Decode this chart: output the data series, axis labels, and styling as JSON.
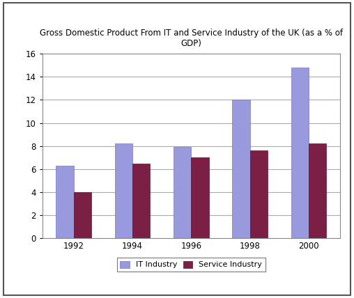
{
  "title": "Gross Domestic Product From IT and Service Industry of the UK (as a % of\nGDP)",
  "categories": [
    "1992",
    "1994",
    "1996",
    "1998",
    "2000"
  ],
  "it_values": [
    6.3,
    8.2,
    7.9,
    12.0,
    14.8
  ],
  "service_values": [
    4.0,
    6.5,
    7.0,
    7.6,
    8.2
  ],
  "it_color": "#9999dd",
  "service_color": "#7b1f45",
  "ylim": [
    0,
    16
  ],
  "yticks": [
    0,
    2,
    4,
    6,
    8,
    10,
    12,
    14,
    16
  ],
  "legend_labels": [
    "IT Industry",
    "Service Industry"
  ],
  "bar_width": 0.3,
  "title_fontsize": 8.5,
  "tick_fontsize": 8.5,
  "legend_fontsize": 8,
  "background_color": "#ffffff",
  "grid_color": "#aaaaaa",
  "outer_border_color": "#555555"
}
